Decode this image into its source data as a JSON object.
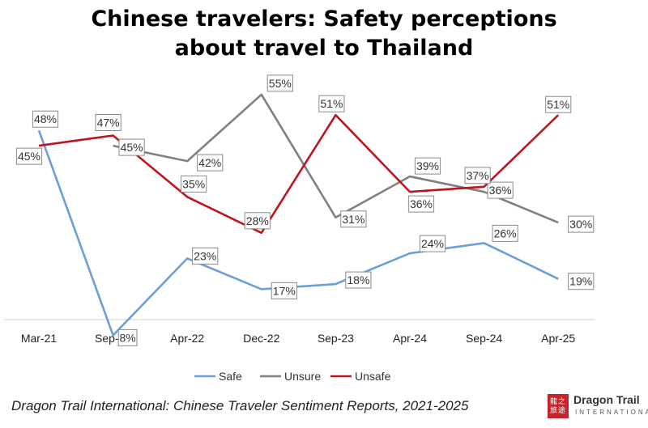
{
  "title_line1": "Chinese travelers: Safety perceptions",
  "title_line2": "about travel to Thailand",
  "source": "Dragon Trail International: Chinese Traveler Sentiment Reports, 2021-2025",
  "logo": {
    "name": "Dragon Trail",
    "sub": "INTERNATIONAL",
    "mark": "龍之旅途"
  },
  "chart_data": {
    "type": "line",
    "categories": [
      "Mar-21",
      "Sep-21",
      "Apr-22",
      "Dec-22",
      "Sep-23",
      "Apr-24",
      "Sep-24",
      "Apr-25"
    ],
    "series": [
      {
        "name": "Safe",
        "color": "#6a9fd8",
        "values": [
          48,
          8,
          23,
          17,
          18,
          24,
          26,
          19
        ]
      },
      {
        "name": "Unsure",
        "color": "#808080",
        "values": [
          null,
          45,
          42,
          55,
          31,
          39,
          36,
          30
        ]
      },
      {
        "name": "Unsafe",
        "color": "#c0141c",
        "values": [
          45,
          47,
          35,
          28,
          51,
          36,
          37,
          51
        ]
      }
    ],
    "value_suffix": "%",
    "ylim": [
      0,
      60
    ],
    "grid": false,
    "legend_position": "bottom"
  }
}
